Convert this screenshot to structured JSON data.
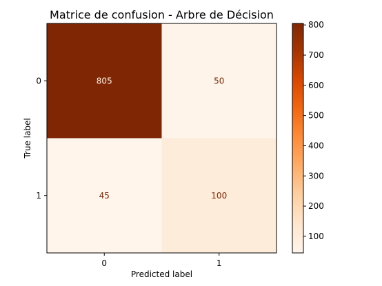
{
  "chart_data": {
    "type": "heatmap",
    "title": "Matrice de confusion - Arbre de Décision",
    "xlabel": "Predicted label",
    "ylabel": "True label",
    "x_categories": [
      "0",
      "1"
    ],
    "y_categories": [
      "0",
      "1"
    ],
    "values": [
      [
        805,
        50
      ],
      [
        45,
        100
      ]
    ],
    "colormap": "Oranges",
    "colorbar": {
      "min": 45,
      "max": 805,
      "ticks": [
        100,
        200,
        300,
        400,
        500,
        600,
        700,
        800
      ]
    },
    "grid": false
  },
  "colors": {
    "colormap_stops": [
      "#fff5eb",
      "#fee6ce",
      "#fdd0a2",
      "#fdae6b",
      "#fd8d3c",
      "#f16913",
      "#d94801",
      "#a63603",
      "#7f2704"
    ],
    "text_on_dark": "#fff5eb",
    "text_on_light": "#7f2704"
  }
}
